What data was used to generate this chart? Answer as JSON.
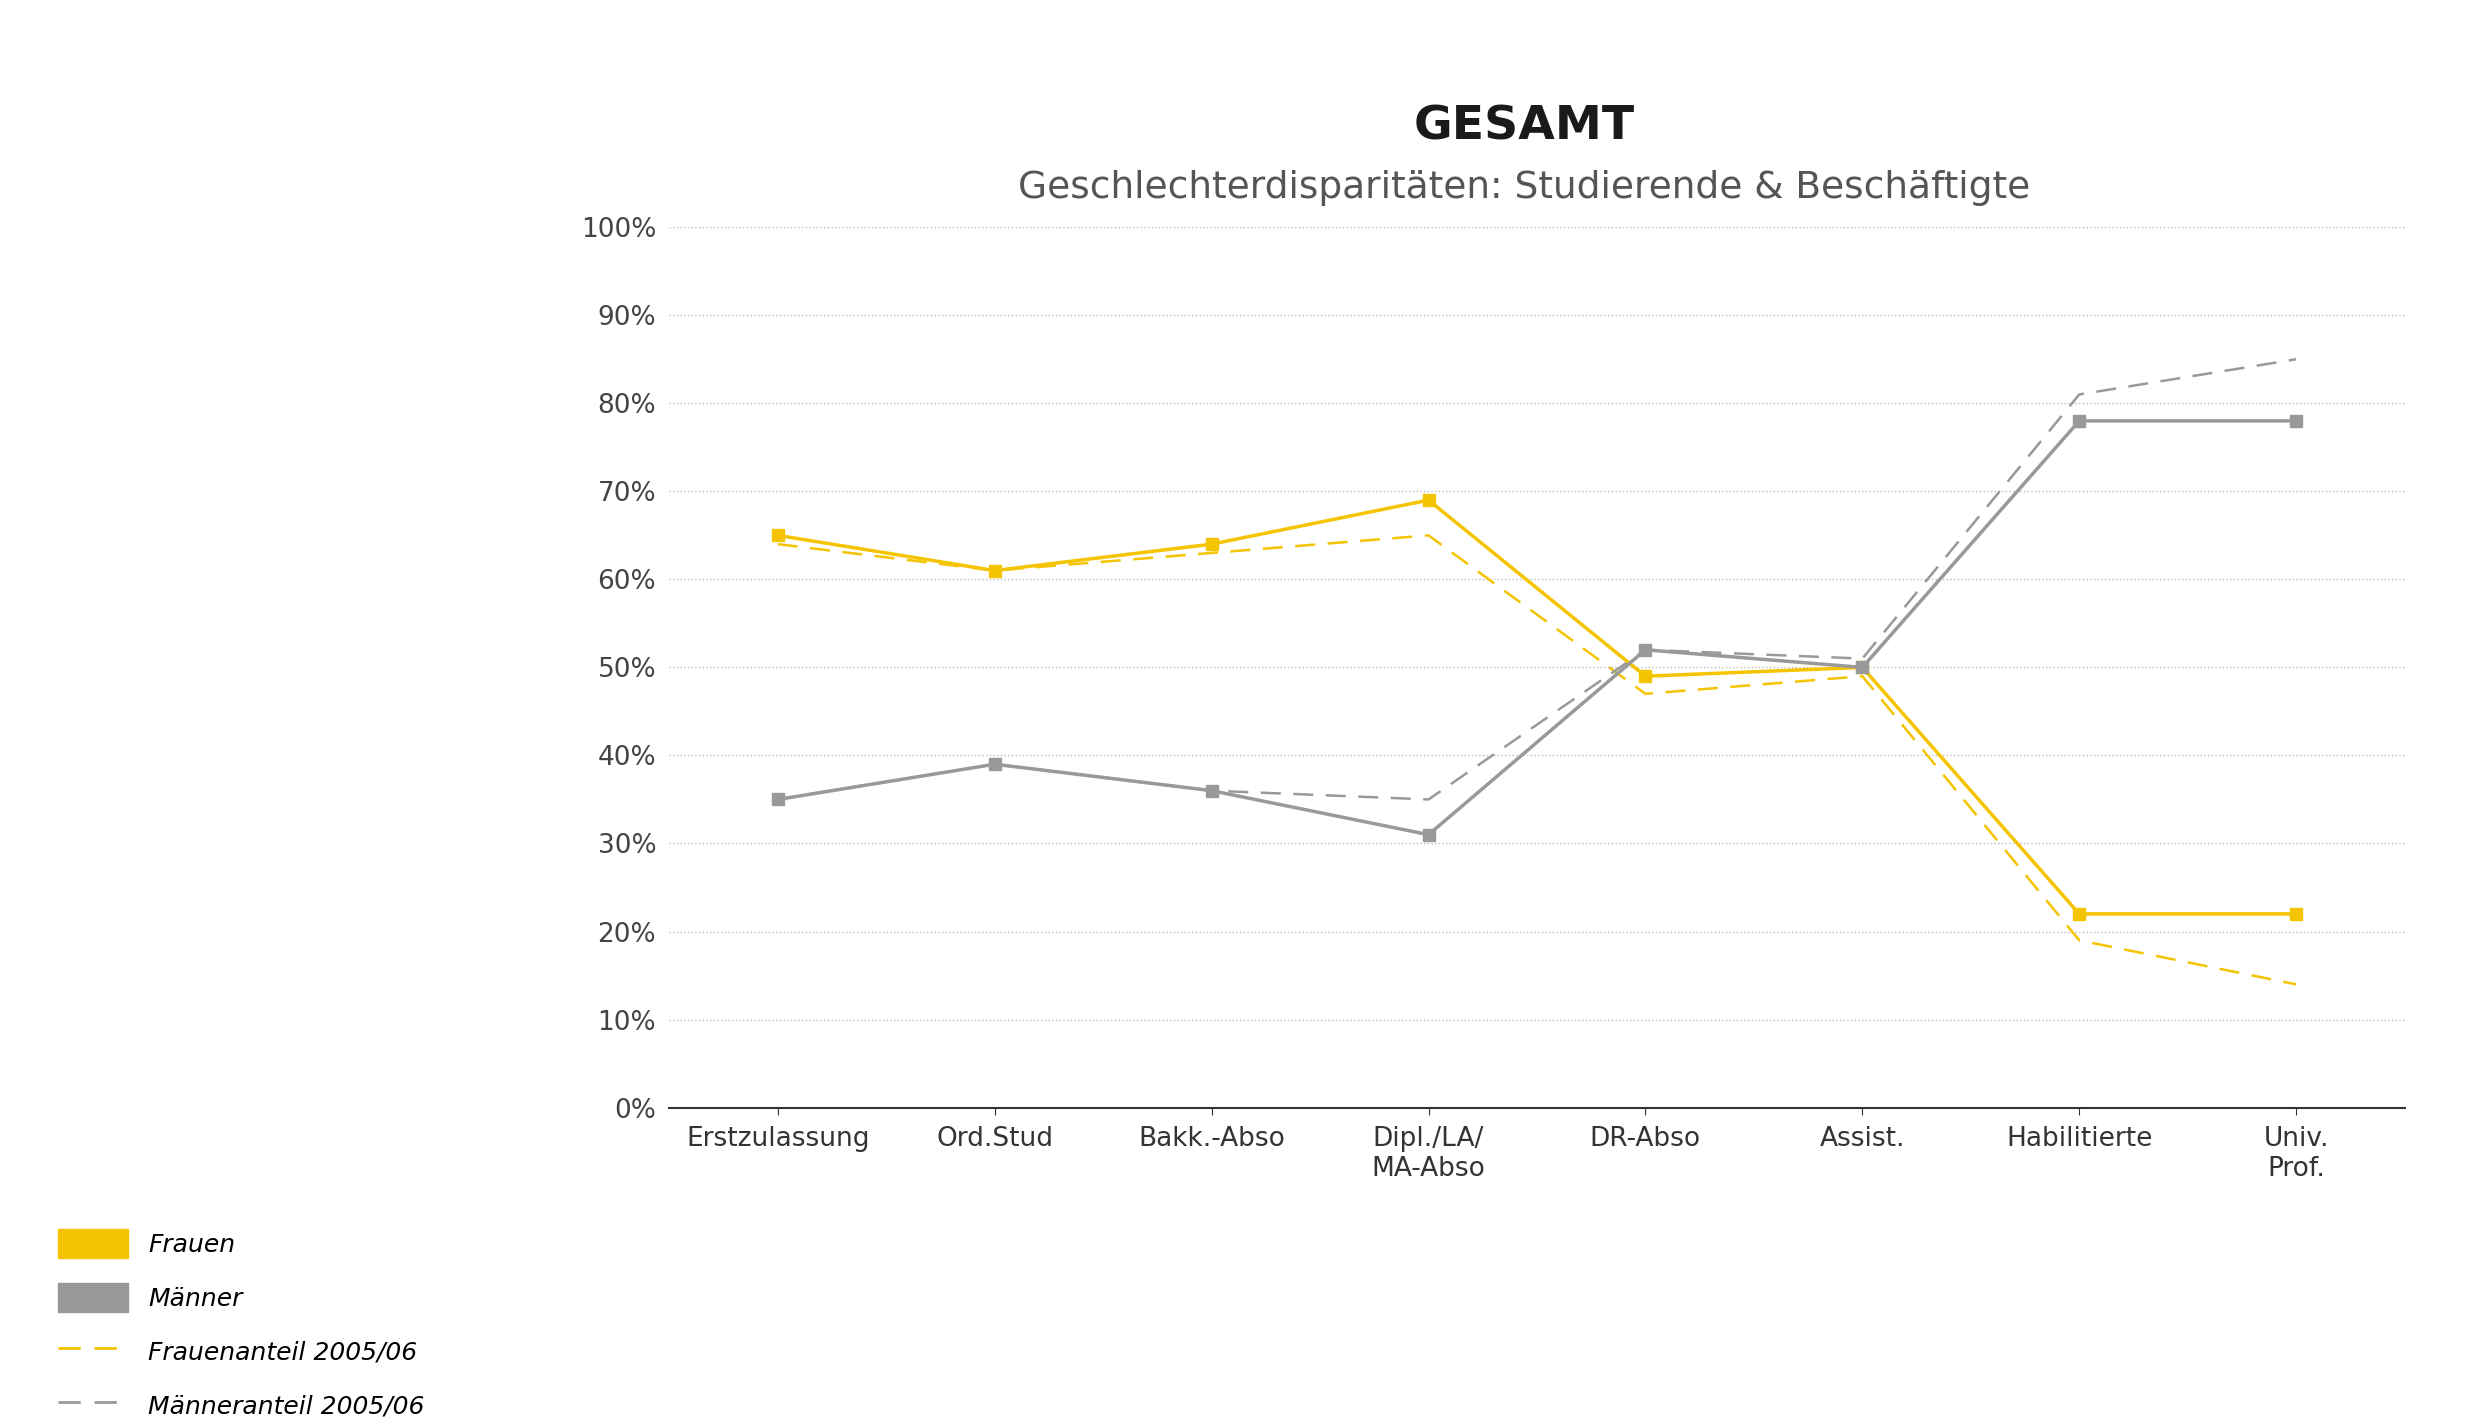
{
  "title1": "GESAMT",
  "title2": "Geschlechterdisparitäten: Studierende & Beschäftigte",
  "categories": [
    "Erstzulassung",
    "Ord.Stud",
    "Bakk.-Abso",
    "Dipl./LA/\nMA-Abso",
    "DR-Abso",
    "Assist.",
    "Habilitierte",
    "Univ.\nProf."
  ],
  "frauen_solid": [
    0.65,
    0.61,
    0.64,
    0.69,
    0.49,
    0.5,
    0.22,
    0.22
  ],
  "maenner_solid": [
    0.35,
    0.39,
    0.36,
    0.31,
    0.52,
    0.5,
    0.78,
    0.78
  ],
  "frauen_dashed": [
    0.64,
    0.61,
    0.63,
    0.65,
    0.47,
    0.49,
    0.19,
    0.14
  ],
  "maenner_dashed": [
    0.35,
    0.39,
    0.36,
    0.35,
    0.52,
    0.51,
    0.81,
    0.85
  ],
  "color_yellow": "#F5C400",
  "color_gray": "#999999",
  "background_color": "#ffffff",
  "ylim": [
    0,
    1.0
  ],
  "yticks": [
    0.0,
    0.1,
    0.2,
    0.3,
    0.4,
    0.5,
    0.6,
    0.7,
    0.8,
    0.9,
    1.0
  ],
  "ytick_labels": [
    "0%",
    "10%",
    "20%",
    "30%",
    "40%",
    "50%",
    "60%",
    "70%",
    "80%",
    "90%",
    "100%"
  ]
}
